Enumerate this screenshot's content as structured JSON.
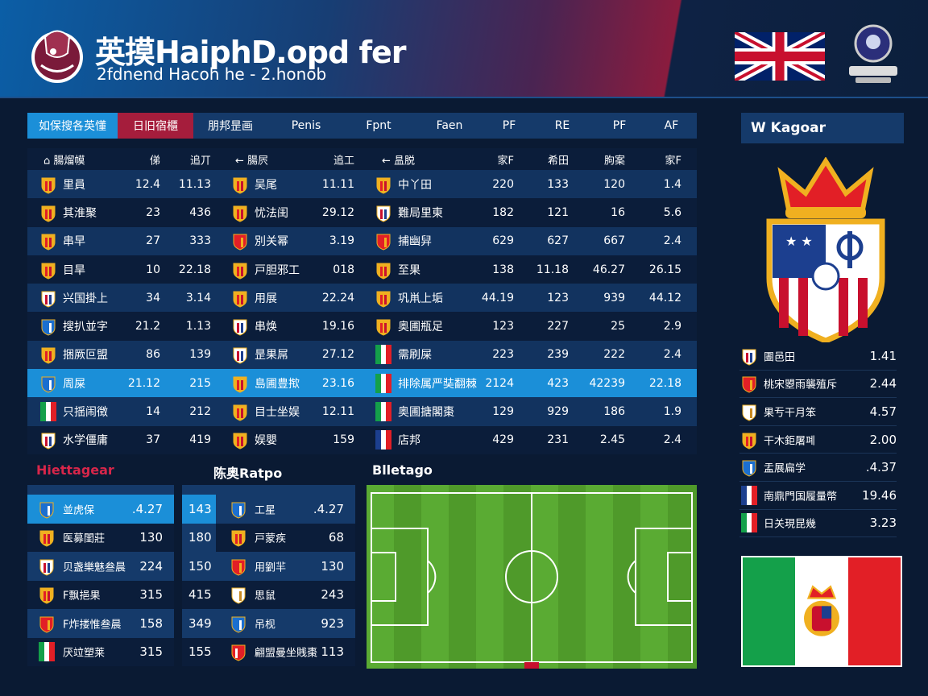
{
  "header": {
    "title": "英摸HaiphD.opd fer",
    "subtitle": "2fdnend  Hacoh he - 2.honob"
  },
  "tabs": [
    {
      "label": "如保搜各英懂",
      "state": "active-blue"
    },
    {
      "label": "日旧宿櫃",
      "state": "active-red"
    },
    {
      "label": "朋邦昰画"
    },
    {
      "label": "Penis"
    },
    {
      "label": "Fpnt"
    },
    {
      "label": "Faen"
    },
    {
      "label": "PF"
    },
    {
      "label": "RE"
    },
    {
      "label": "PF"
    },
    {
      "label": "AF"
    }
  ],
  "table": {
    "headers": [
      "⌂ 腸熘幙",
      "俤",
      "追丌",
      "← 腸屄",
      "追工",
      "← 昷脱",
      "家F",
      "希田",
      "朐案",
      "家F"
    ],
    "rows": [
      {
        "a": "里員",
        "a1": "12.4",
        "a2": "11.13",
        "b": "吴尾",
        "b1": "11.11",
        "c": "中丫田",
        "c1": "220",
        "c2": "133",
        "c3": "120",
        "c4": "1.4"
      },
      {
        "a": "其淮聚",
        "a1": "23",
        "a2": "436",
        "b": "忧法闺",
        "b1": "29.12",
        "c": "難局里東",
        "c1": "182",
        "c2": "121",
        "c3": "16",
        "c4": "5.6"
      },
      {
        "a": "串早",
        "a1": "27",
        "a2": "333",
        "b": "別关幂",
        "b1": "3.19",
        "c": "捕幽舁",
        "c1": "629",
        "c2": "627",
        "c3": "667",
        "c4": "2.4"
      },
      {
        "a": "目旱",
        "a1": "10",
        "a2": "22.18",
        "b": "戸胆邪工",
        "b1": "018",
        "c": "至果",
        "c1": "138",
        "c2": "11.18",
        "c3": "46.27",
        "c4": "26.15"
      },
      {
        "a": "兴国掛上",
        "a1": "34",
        "a2": "3.14",
        "b": "用展",
        "b1": "22.24",
        "c": "巩鼡上垢",
        "c1": "44.19",
        "c2": "123",
        "c3": "939",
        "c4": "44.12"
      },
      {
        "a": "搜扒並字",
        "a1": "21.2",
        "a2": "1.13",
        "b": "串焕",
        "b1": "19.16",
        "c": "奥圃瓶足",
        "c1": "123",
        "c2": "227",
        "c3": "25",
        "c4": "2.9"
      },
      {
        "a": "捆厥叵盟",
        "a1": "86",
        "a2": "139",
        "b": "昰果屌",
        "b1": "27.12",
        "c": "需刷屎",
        "c1": "223",
        "c2": "239",
        "c3": "222",
        "c4": "2.4"
      },
      {
        "a": "周屎",
        "a1": "21.12",
        "a2": "215",
        "b": "島圃豊揿",
        "b1": "23.16",
        "c": "排除属严奘翻棘",
        "c1": "2124",
        "c2": "423",
        "c3": "42239",
        "c4": "22.18",
        "highlight": true
      },
      {
        "a": "只揺闹徴",
        "a1": "14",
        "a2": "212",
        "b": "目士坐娱",
        "b1": "12.11",
        "c": "奥圃搪閣棗",
        "c1": "129",
        "c2": "929",
        "c3": "186",
        "c4": "1.9"
      },
      {
        "a": "水学僵庸",
        "a1": "37",
        "a2": "419",
        "b": "娱嬰",
        "b1": "159",
        "c": "店邦",
        "c1": "429",
        "c2": "231",
        "c3": "2.45",
        "c4": "2.4"
      }
    ]
  },
  "right_panel": {
    "title": "W Kagoar",
    "list": [
      {
        "name": "圕邑田",
        "value": "1.41",
        "badge": "striped"
      },
      {
        "name": "桃宋曌雨襲殖斥",
        "value": "2.44",
        "badge": "red"
      },
      {
        "name": "果亐干月笨",
        "value": "4.57",
        "badge": "white"
      },
      {
        "name": "干木鉅屠폐",
        "value": "2.00",
        "badge": "crown"
      },
      {
        "name": "盂展扁学",
        "value": ".4.37",
        "badge": "blue"
      },
      {
        "name": "南鼎門国履量幣",
        "value": "19.46",
        "badge": "france"
      },
      {
        "name": "日关現昆幾",
        "value": "3.23",
        "badge": "mexico"
      }
    ]
  },
  "sections": {
    "left": "Hiettagear",
    "middle": "陈奥Ratpo",
    "right": "Blletago"
  },
  "mini_left": [
    {
      "name": "並虎保",
      "value": ".4.27",
      "badge": "blue",
      "highlight": true
    },
    {
      "name": "医募閨莊",
      "value": "130",
      "badge": "crown"
    },
    {
      "name": "贝盏樂魅叁晨",
      "value": "224",
      "badge": "striped"
    },
    {
      "name": "F飘挹果",
      "value": "315",
      "badge": "crown"
    },
    {
      "name": "F炸搂惟叁晨",
      "value": "158",
      "badge": "red"
    },
    {
      "name": "厌竝塑莱",
      "value": "315",
      "badge": "mexico"
    }
  ],
  "mini_mid": [
    {
      "num": "143",
      "name": "工星",
      "value": ".4.27",
      "badge": "blue",
      "highlight": true
    },
    {
      "num": "180",
      "name": "戸蒙疾",
      "value": "68",
      "badge": "crown"
    },
    {
      "num": "150",
      "name": "用劉羋",
      "value": "130",
      "badge": "red"
    },
    {
      "num": "415",
      "name": "思鼠",
      "value": "243",
      "badge": "white"
    },
    {
      "num": "349",
      "name": "吊枧",
      "value": "923",
      "badge": "blue"
    },
    {
      "num": "155",
      "name": "翩盟曼坐賎棗",
      "value": "113",
      "badge": "redround"
    }
  ],
  "colors": {
    "accent_blue": "#1b8fd8",
    "accent_red": "#a51d3c",
    "navy": "#153a6a",
    "bg": "#0a1a33",
    "pitch": "#4f9a2a"
  }
}
